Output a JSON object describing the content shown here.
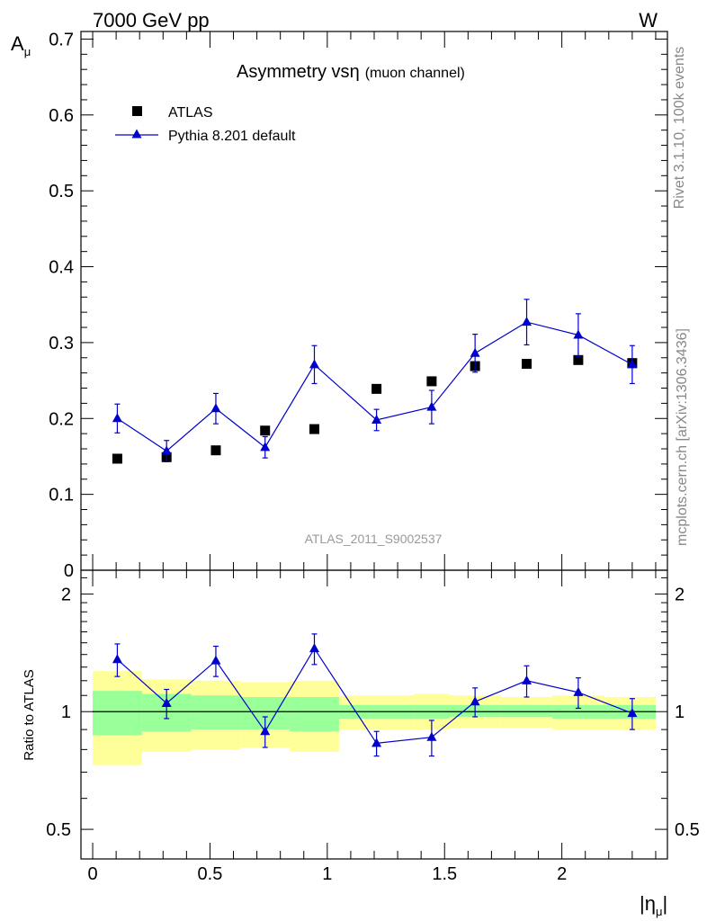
{
  "header": {
    "left": "7000 GeV pp",
    "right": "W"
  },
  "side_labels": {
    "rivet": "Rivet 3.1.10,  100k events",
    "mcplots": "mcplots.cern.ch [arXiv:1306.3436]"
  },
  "main_panel": {
    "title_main": "Asymmetry vs",
    "title_eta": "η",
    "title_suffix": "(muon channel)",
    "ylabel_main": "A",
    "ylabel_sub": "μ",
    "watermark": "ATLAS_2011_S9002537"
  },
  "ratio_panel": {
    "ylabel": "Ratio to ATLAS"
  },
  "x_axis": {
    "label_main": "|η",
    "label_sub": "μ",
    "label_close": "|"
  },
  "colors": {
    "data": "#000000",
    "mc": "#0000cc",
    "band_inner": "#99ff99",
    "band_outer": "#ffff99"
  },
  "chart_data": [
    {
      "type": "scatter",
      "panel": "main",
      "xlim": [
        -0.05,
        2.45
      ],
      "ylim": [
        0,
        0.71
      ],
      "yticks": [
        0,
        0.1,
        0.2,
        0.3,
        0.4,
        0.5,
        0.6,
        0.7
      ],
      "ytick_labels": [
        "0",
        "0.1",
        "0.2",
        "0.3",
        "0.4",
        "0.5",
        "0.6",
        "0.7"
      ],
      "legend_placement": "top-left",
      "series": [
        {
          "name": "ATLAS",
          "marker": "square",
          "x": [
            0.105,
            0.315,
            0.525,
            0.735,
            0.945,
            1.21,
            1.445,
            1.63,
            1.85,
            2.07,
            2.3
          ],
          "y": [
            0.147,
            0.149,
            0.158,
            0.184,
            0.186,
            0.239,
            0.249,
            0.269,
            0.272,
            0.277,
            0.273
          ]
        },
        {
          "name": "Pythia 8.201 default",
          "marker": "triangle",
          "x": [
            0.105,
            0.315,
            0.525,
            0.735,
            0.945,
            1.21,
            1.445,
            1.63,
            1.85,
            2.07,
            2.3
          ],
          "y": [
            0.2,
            0.157,
            0.213,
            0.162,
            0.271,
            0.198,
            0.215,
            0.286,
            0.327,
            0.31,
            0.271
          ],
          "yerr": [
            0.019,
            0.014,
            0.02,
            0.014,
            0.025,
            0.014,
            0.022,
            0.025,
            0.03,
            0.028,
            0.025
          ]
        }
      ]
    },
    {
      "type": "line",
      "panel": "ratio",
      "xlim": [
        -0.05,
        2.45
      ],
      "ylim": [
        0.42,
        2.3
      ],
      "log_y": true,
      "yticks": [
        0.5,
        1,
        2
      ],
      "ytick_labels": [
        "0.5",
        "1",
        "2"
      ],
      "xticks": [
        0,
        0.5,
        1,
        1.5,
        2
      ],
      "xtick_labels": [
        "0",
        "0.5",
        "1",
        "1.5",
        "2"
      ],
      "series": [
        {
          "name": "Pythia 8.201 default",
          "x": [
            0.105,
            0.315,
            0.525,
            0.735,
            0.945,
            1.21,
            1.445,
            1.63,
            1.85,
            2.07,
            2.3
          ],
          "y": [
            1.36,
            1.05,
            1.35,
            0.89,
            1.45,
            0.83,
            0.86,
            1.06,
            1.2,
            1.12,
            0.99
          ],
          "yerr": [
            0.13,
            0.09,
            0.12,
            0.08,
            0.13,
            0.06,
            0.09,
            0.09,
            0.11,
            0.1,
            0.09
          ]
        }
      ],
      "bands": [
        {
          "x0": 0.0,
          "x1": 0.21,
          "inner": [
            0.87,
            1.13
          ],
          "outer": [
            0.73,
            1.27
          ]
        },
        {
          "x0": 0.21,
          "x1": 0.42,
          "inner": [
            0.89,
            1.11
          ],
          "outer": [
            0.79,
            1.21
          ]
        },
        {
          "x0": 0.42,
          "x1": 0.63,
          "inner": [
            0.9,
            1.1
          ],
          "outer": [
            0.8,
            1.2
          ]
        },
        {
          "x0": 0.63,
          "x1": 0.84,
          "inner": [
            0.9,
            1.09
          ],
          "outer": [
            0.81,
            1.19
          ]
        },
        {
          "x0": 0.84,
          "x1": 1.05,
          "inner": [
            0.89,
            1.09
          ],
          "outer": [
            0.79,
            1.2
          ]
        },
        {
          "x0": 1.05,
          "x1": 1.37,
          "inner": [
            0.96,
            1.04
          ],
          "outer": [
            0.9,
            1.1
          ]
        },
        {
          "x0": 1.37,
          "x1": 1.52,
          "inner": [
            0.96,
            1.04
          ],
          "outer": [
            0.9,
            1.11
          ]
        },
        {
          "x0": 1.52,
          "x1": 1.74,
          "inner": [
            0.97,
            1.04
          ],
          "outer": [
            0.91,
            1.1
          ]
        },
        {
          "x0": 1.74,
          "x1": 1.96,
          "inner": [
            0.97,
            1.04
          ],
          "outer": [
            0.91,
            1.09
          ]
        },
        {
          "x0": 1.96,
          "x1": 2.18,
          "inner": [
            0.96,
            1.04
          ],
          "outer": [
            0.9,
            1.1
          ]
        },
        {
          "x0": 2.18,
          "x1": 2.4,
          "inner": [
            0.96,
            1.04
          ],
          "outer": [
            0.9,
            1.09
          ]
        }
      ]
    }
  ]
}
